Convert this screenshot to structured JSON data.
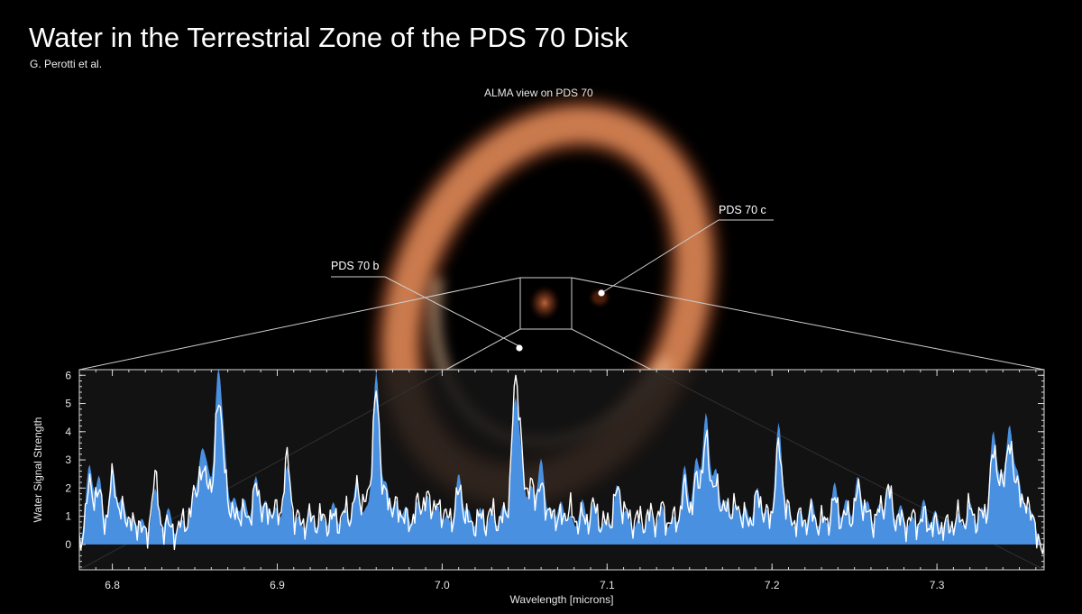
{
  "header": {
    "title": "Water in the Terrestrial Zone of the PDS 70 Disk",
    "credit": "G. Perotti et al."
  },
  "image": {
    "caption": "ALMA view on PDS 70",
    "planets": [
      {
        "name": "PDS 70 b"
      },
      {
        "name": "PDS 70 c"
      }
    ]
  },
  "colors": {
    "background": "#000000",
    "disk": "#e0885a",
    "model_fill": "#4a90e0",
    "observed_line": "#ffffff",
    "plot_background": "#151515"
  },
  "chart_data": {
    "type": "line",
    "xlabel": "Wavelength [microns]",
    "ylabel": "Water Signal Strength",
    "xlim": [
      6.78,
      7.365
    ],
    "ylim": [
      -0.9,
      6.2
    ],
    "xticks": [
      6.8,
      6.9,
      7.0,
      7.1,
      7.2,
      7.3
    ],
    "yticks": [
      0,
      1,
      2,
      3,
      4,
      5,
      6
    ],
    "grid": false,
    "series": [
      {
        "role": "model",
        "style": "filled area",
        "x": [
          6.786,
          6.792,
          6.8,
          6.806,
          6.812,
          6.818,
          6.826,
          6.834,
          6.842,
          6.849,
          6.854,
          6.858,
          6.864,
          6.868,
          6.874,
          6.88,
          6.887,
          6.893,
          6.899,
          6.906,
          6.913,
          6.92,
          6.927,
          6.934,
          6.941,
          6.948,
          6.954,
          6.96,
          6.966,
          6.972,
          6.978,
          6.985,
          6.991,
          6.997,
          7.003,
          7.01,
          7.016,
          7.023,
          7.03,
          7.037,
          7.044,
          7.048,
          7.054,
          7.06,
          7.066,
          7.072,
          7.078,
          7.085,
          7.092,
          7.099,
          7.106,
          7.112,
          7.119,
          7.126,
          7.133,
          7.14,
          7.147,
          7.154,
          7.16,
          7.166,
          7.172,
          7.178,
          7.184,
          7.191,
          7.197,
          7.204,
          7.21,
          7.217,
          7.224,
          7.231,
          7.238,
          7.245,
          7.252,
          7.258,
          7.265,
          7.271,
          7.278,
          7.285,
          7.292,
          7.299,
          7.306,
          7.313,
          7.32,
          7.327,
          7.334,
          7.339,
          7.344,
          7.349,
          7.354,
          7.358
        ],
        "y": [
          2.8,
          2.4,
          2.7,
          1.6,
          0.9,
          0.9,
          2.0,
          1.3,
          0.9,
          1.6,
          2.9,
          2.2,
          5.7,
          2.8,
          1.6,
          1.6,
          2.4,
          1.5,
          1.3,
          2.8,
          1.0,
          1.2,
          1.1,
          1.5,
          1.3,
          2.2,
          1.2,
          6.1,
          2.1,
          1.5,
          1.3,
          1.5,
          1.7,
          1.4,
          1.0,
          2.5,
          1.2,
          1.3,
          1.2,
          1.4,
          4.7,
          2.6,
          2.0,
          3.0,
          1.2,
          1.5,
          1.0,
          1.6,
          1.5,
          0.9,
          2.1,
          1.2,
          0.9,
          1.2,
          1.4,
          1.0,
          2.8,
          3.0,
          4.6,
          2.6,
          1.5,
          1.4,
          1.3,
          2.0,
          1.2,
          4.3,
          1.3,
          1.2,
          1.6,
          1.0,
          2.2,
          1.6,
          2.4,
          1.5,
          1.4,
          2.1,
          1.4,
          1.0,
          1.6,
          1.2,
          0.9,
          1.1,
          1.5,
          1.3,
          3.9,
          2.0,
          4.0,
          2.3,
          1.1,
          0.9
        ]
      },
      {
        "role": "observed",
        "style": "white line",
        "x": [
          6.786,
          6.792,
          6.8,
          6.806,
          6.812,
          6.818,
          6.826,
          6.834,
          6.842,
          6.849,
          6.854,
          6.858,
          6.864,
          6.868,
          6.874,
          6.88,
          6.887,
          6.893,
          6.899,
          6.906,
          6.913,
          6.92,
          6.927,
          6.934,
          6.941,
          6.948,
          6.954,
          6.96,
          6.966,
          6.972,
          6.978,
          6.985,
          6.991,
          6.997,
          7.003,
          7.01,
          7.016,
          7.023,
          7.03,
          7.037,
          7.044,
          7.048,
          7.054,
          7.06,
          7.066,
          7.072,
          7.078,
          7.085,
          7.092,
          7.099,
          7.106,
          7.112,
          7.119,
          7.126,
          7.133,
          7.14,
          7.147,
          7.154,
          7.16,
          7.166,
          7.172,
          7.178,
          7.184,
          7.191,
          7.197,
          7.204,
          7.21,
          7.217,
          7.224,
          7.231,
          7.238,
          7.245,
          7.252,
          7.258,
          7.265,
          7.271,
          7.278,
          7.285,
          7.292,
          7.299,
          7.306,
          7.313,
          7.32,
          7.327,
          7.334,
          7.339,
          7.344,
          7.349,
          7.354,
          7.358
        ],
        "y": [
          2.3,
          2.1,
          2.6,
          1.4,
          1.0,
          0.8,
          2.6,
          1.0,
          1.1,
          1.8,
          2.3,
          1.9,
          4.8,
          2.3,
          1.3,
          1.4,
          2.3,
          1.4,
          1.5,
          3.3,
          1.2,
          1.3,
          1.3,
          1.3,
          1.5,
          2.2,
          1.8,
          5.6,
          1.9,
          1.6,
          1.2,
          1.7,
          1.9,
          1.6,
          1.3,
          2.2,
          1.1,
          1.3,
          1.5,
          1.3,
          5.4,
          2.9,
          2.3,
          2.3,
          1.3,
          1.2,
          1.5,
          1.3,
          1.7,
          1.1,
          2.2,
          1.4,
          1.3,
          1.4,
          1.6,
          1.2,
          2.3,
          2.5,
          3.9,
          2.3,
          1.5,
          1.6,
          1.2,
          2.0,
          1.3,
          3.7,
          1.4,
          1.3,
          1.4,
          1.2,
          1.9,
          1.4,
          2.2,
          1.4,
          1.5,
          2.2,
          1.2,
          1.3,
          1.3,
          1.0,
          1.0,
          1.3,
          1.6,
          1.4,
          3.4,
          2.0,
          3.5,
          2.0,
          1.3,
          0.9
        ]
      }
    ]
  }
}
